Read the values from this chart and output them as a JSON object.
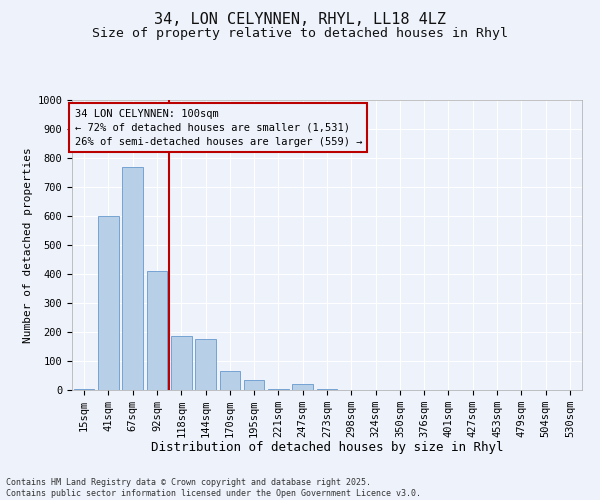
{
  "title1": "34, LON CELYNNEN, RHYL, LL18 4LZ",
  "title2": "Size of property relative to detached houses in Rhyl",
  "xlabel": "Distribution of detached houses by size in Rhyl",
  "ylabel": "Number of detached properties",
  "annotation_line1": "34 LON CELYNNEN: 100sqm",
  "annotation_line2": "← 72% of detached houses are smaller (1,531)",
  "annotation_line3": "26% of semi-detached houses are larger (559) →",
  "footer1": "Contains HM Land Registry data © Crown copyright and database right 2025.",
  "footer2": "Contains public sector information licensed under the Open Government Licence v3.0.",
  "categories": [
    "15sqm",
    "41sqm",
    "67sqm",
    "92sqm",
    "118sqm",
    "144sqm",
    "170sqm",
    "195sqm",
    "221sqm",
    "247sqm",
    "273sqm",
    "298sqm",
    "324sqm",
    "350sqm",
    "376sqm",
    "401sqm",
    "427sqm",
    "453sqm",
    "479sqm",
    "504sqm",
    "530sqm"
  ],
  "values": [
    5,
    600,
    770,
    410,
    185,
    175,
    65,
    35,
    5,
    20,
    5,
    0,
    0,
    0,
    0,
    0,
    0,
    0,
    0,
    0,
    0
  ],
  "bar_color": "#b8cfe8",
  "bar_edge_color": "#6699cc",
  "vline_color": "#bb0000",
  "box_color": "#bb0000",
  "bg_color": "#eef2fb",
  "ylim": [
    0,
    1000
  ],
  "yticks": [
    0,
    100,
    200,
    300,
    400,
    500,
    600,
    700,
    800,
    900,
    1000
  ],
  "grid_color": "#ffffff",
  "title_fontsize": 11,
  "subtitle_fontsize": 9.5,
  "tick_fontsize": 7.5,
  "xlabel_fontsize": 9,
  "ylabel_fontsize": 8,
  "annotation_fontsize": 7.5,
  "footer_fontsize": 6
}
